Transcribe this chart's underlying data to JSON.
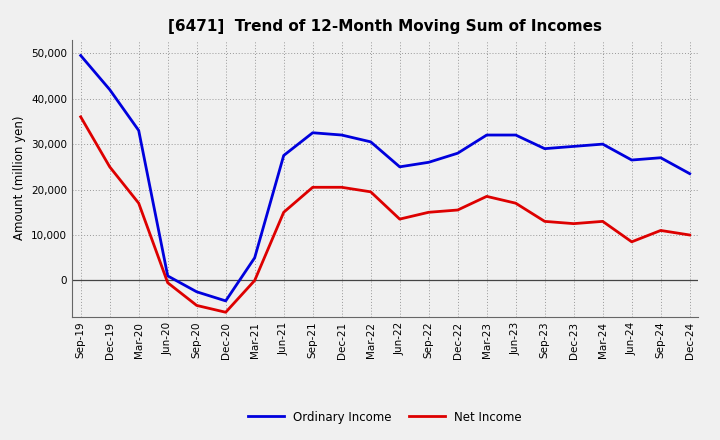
{
  "title": "[6471]  Trend of 12-Month Moving Sum of Incomes",
  "ylabel": "Amount (million yen)",
  "background_color": "#f0f0f0",
  "plot_bg_color": "#f0f0f0",
  "grid_color": "#999999",
  "line_color_ordinary": "#0000dd",
  "line_color_net": "#dd0000",
  "legend_ordinary": "Ordinary Income",
  "legend_net": "Net Income",
  "xlabels": [
    "Sep-19",
    "Dec-19",
    "Mar-20",
    "Jun-20",
    "Sep-20",
    "Dec-20",
    "Mar-21",
    "Jun-21",
    "Sep-21",
    "Dec-21",
    "Mar-22",
    "Jun-22",
    "Sep-22",
    "Dec-22",
    "Mar-23",
    "Jun-23",
    "Sep-23",
    "Dec-23",
    "Mar-24",
    "Jun-24",
    "Sep-24",
    "Dec-24"
  ],
  "ordinary_income": [
    49500,
    42000,
    33000,
    1000,
    -2500,
    -4500,
    5000,
    27500,
    32500,
    32000,
    30500,
    25000,
    26000,
    28000,
    32000,
    32000,
    29000,
    29500,
    30000,
    26500,
    27000,
    23500
  ],
  "net_income": [
    36000,
    25000,
    17000,
    -500,
    -5500,
    -7000,
    0,
    15000,
    20500,
    20500,
    19500,
    13500,
    15000,
    15500,
    18500,
    17000,
    13000,
    12500,
    13000,
    8500,
    11000,
    10000
  ],
  "ylim": [
    -8000,
    53000
  ],
  "yticks": [
    0,
    10000,
    20000,
    30000,
    40000,
    50000
  ],
  "ytick_labels": [
    "0",
    "10,000",
    "20,000",
    "30,000",
    "40,000",
    "50,000"
  ],
  "title_fontsize": 11,
  "ylabel_fontsize": 8.5,
  "tick_fontsize": 7.5,
  "legend_fontsize": 8.5,
  "linewidth": 2.0
}
